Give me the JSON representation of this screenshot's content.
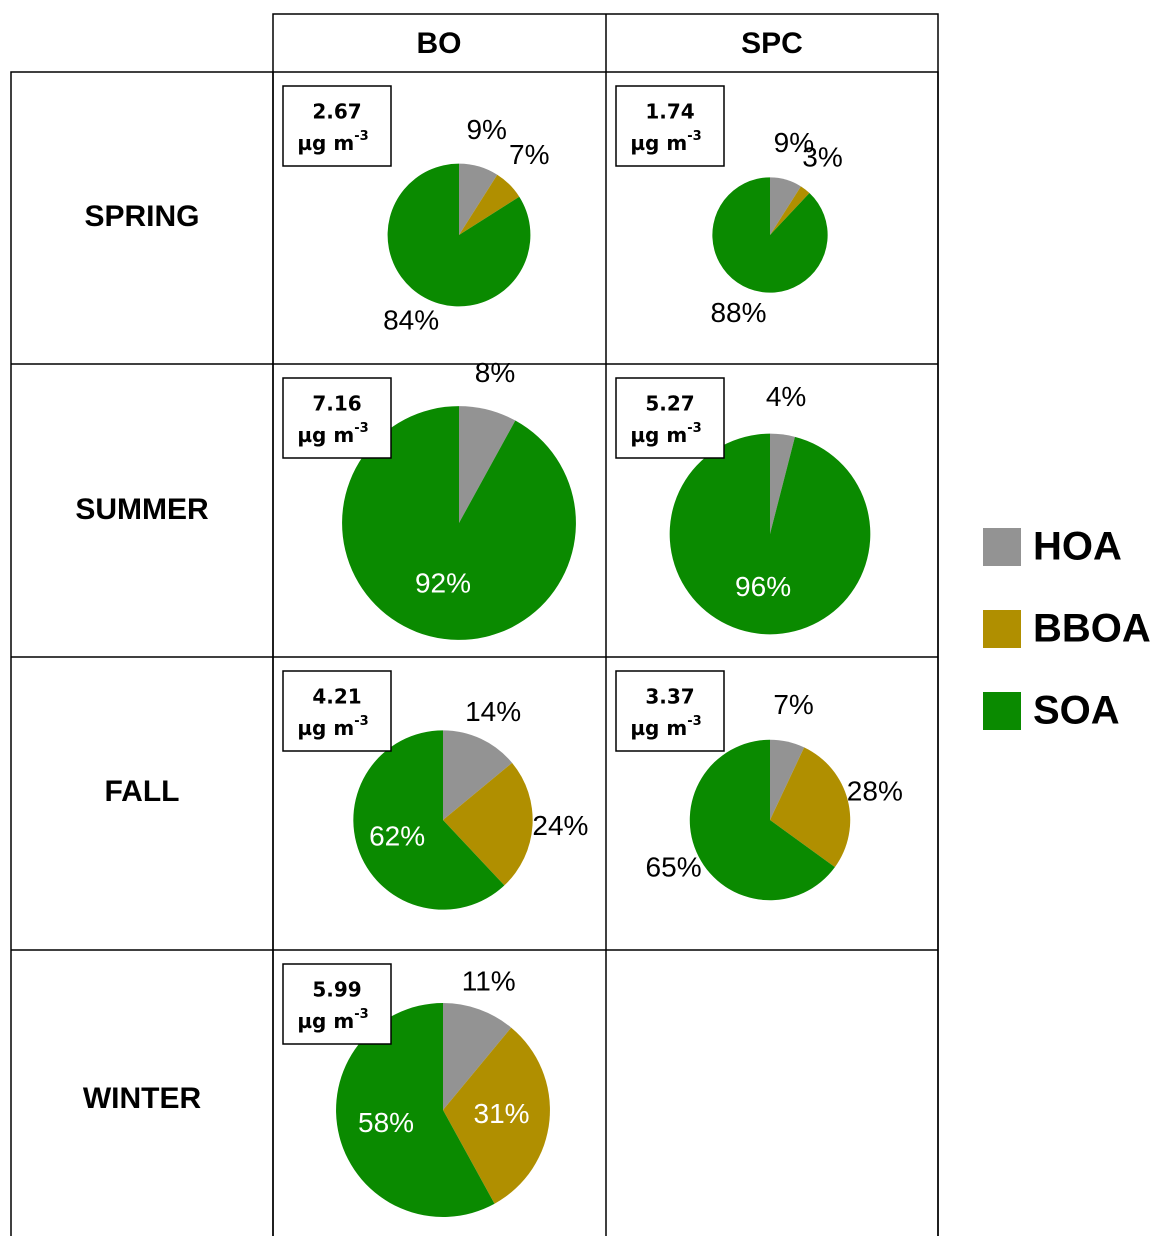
{
  "columns": [
    "BO",
    "SPC"
  ],
  "rows": [
    "SPRING",
    "SUMMER",
    "FALL",
    "WINTER"
  ],
  "legend": {
    "names": [
      "HOA",
      "BBOA",
      "SOA"
    ],
    "colors": [
      "#939393",
      "#b08f00",
      "#0a8a00"
    ]
  },
  "chart_data": [
    {
      "type": "pie",
      "total": 2.67,
      "unit": "µg m",
      "unit_power": "-3",
      "values": [
        9,
        7,
        84
      ],
      "value_labels": [
        "9%",
        "7%",
        "84%"
      ]
    },
    {
      "type": "pie",
      "total": 1.74,
      "unit": "µg m",
      "unit_power": "-3",
      "values": [
        9,
        3,
        88
      ],
      "value_labels": [
        "9%",
        "3%",
        "88%"
      ]
    },
    {
      "type": "pie",
      "total": 7.16,
      "unit": "µg m",
      "unit_power": "-3",
      "values": [
        8,
        null,
        92
      ],
      "value_labels": [
        "8%",
        null,
        "92%"
      ]
    },
    {
      "type": "pie",
      "total": 5.27,
      "unit": "µg m",
      "unit_power": "-3",
      "values": [
        4,
        null,
        96
      ],
      "value_labels": [
        "4%",
        null,
        "96%"
      ]
    },
    {
      "type": "pie",
      "total": 4.21,
      "unit": "µg m",
      "unit_power": "-3",
      "values": [
        14,
        24,
        62
      ],
      "value_labels": [
        "14%",
        "24%",
        "62%"
      ]
    },
    {
      "type": "pie",
      "total": 3.37,
      "unit": "µg m",
      "unit_power": "-3",
      "values": [
        7,
        28,
        65
      ],
      "value_labels": [
        "7%",
        "28%",
        "65%"
      ]
    },
    {
      "type": "pie",
      "total": 5.99,
      "unit": "µg m",
      "unit_power": "-3",
      "values": [
        11,
        31,
        58
      ],
      "value_labels": [
        "11%",
        "31%",
        "58%"
      ]
    }
  ]
}
